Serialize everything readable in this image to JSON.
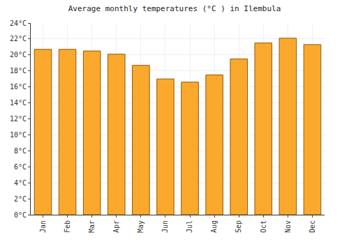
{
  "chart_data": {
    "type": "bar",
    "title": "Average monthly temperatures (°C ) in Ilembula",
    "categories": [
      "Jan",
      "Feb",
      "Mar",
      "Apr",
      "May",
      "Jun",
      "Jul",
      "Aug",
      "Sep",
      "Oct",
      "Nov",
      "Dec"
    ],
    "values": [
      20.7,
      20.7,
      20.5,
      20.1,
      18.7,
      17.0,
      16.6,
      17.5,
      19.5,
      21.5,
      22.1,
      21.3
    ],
    "color": "#fba92c",
    "ylim": [
      0,
      24
    ],
    "yticks": [
      {
        "value": 0,
        "label": "0°C"
      },
      {
        "value": 2,
        "label": "2°C"
      },
      {
        "value": 4,
        "label": "4°C"
      },
      {
        "value": 6,
        "label": "6°C"
      },
      {
        "value": 8,
        "label": "8°C"
      },
      {
        "value": 10,
        "label": "10°C"
      },
      {
        "value": 12,
        "label": "12°C"
      },
      {
        "value": 14,
        "label": "14°C"
      },
      {
        "value": 16,
        "label": "16°C"
      },
      {
        "value": 18,
        "label": "18°C"
      },
      {
        "value": 20,
        "label": "20°C"
      },
      {
        "value": 22,
        "label": "22°C"
      },
      {
        "value": 24,
        "label": "24°C"
      }
    ],
    "grid": true
  }
}
